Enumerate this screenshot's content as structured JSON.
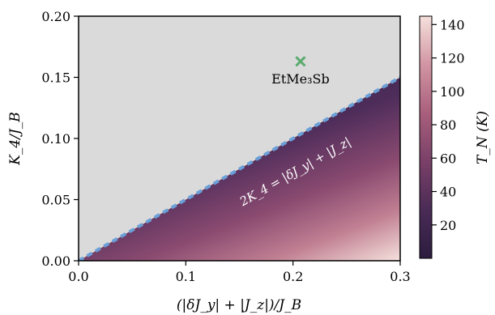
{
  "chart_data": {
    "type": "heatmap",
    "xlabel": "(|δJ_y| + |J_z|)/J_B",
    "ylabel": "K_4/J_B",
    "xlim": [
      0.0,
      0.3
    ],
    "ylim": [
      0.0,
      0.2
    ],
    "x_ticks": [
      "0.0",
      "0.1",
      "0.2",
      "0.3"
    ],
    "y_ticks": [
      "0.00",
      "0.05",
      "0.10",
      "0.15",
      "0.20"
    ],
    "colorbar": {
      "label": "T_N (K)",
      "range": [
        0,
        145
      ],
      "ticks": [
        "20",
        "40",
        "60",
        "80",
        "100",
        "120",
        "140"
      ]
    },
    "boundary_line": {
      "label": "2K_4 = |δJ_y| + |J_z|",
      "x": [
        0.0,
        0.3
      ],
      "y": [
        0.0,
        0.15
      ],
      "color": "#6a9fd8"
    },
    "points": [
      {
        "name": "EtMe₃Sb",
        "x": 0.207,
        "y": 0.163,
        "marker": "x",
        "color": "#5aab6e"
      }
    ],
    "colors": {
      "background_region": "#dadada",
      "colormap_low": "#2c1c3f",
      "colormap_high": "#f5e1dc"
    }
  }
}
